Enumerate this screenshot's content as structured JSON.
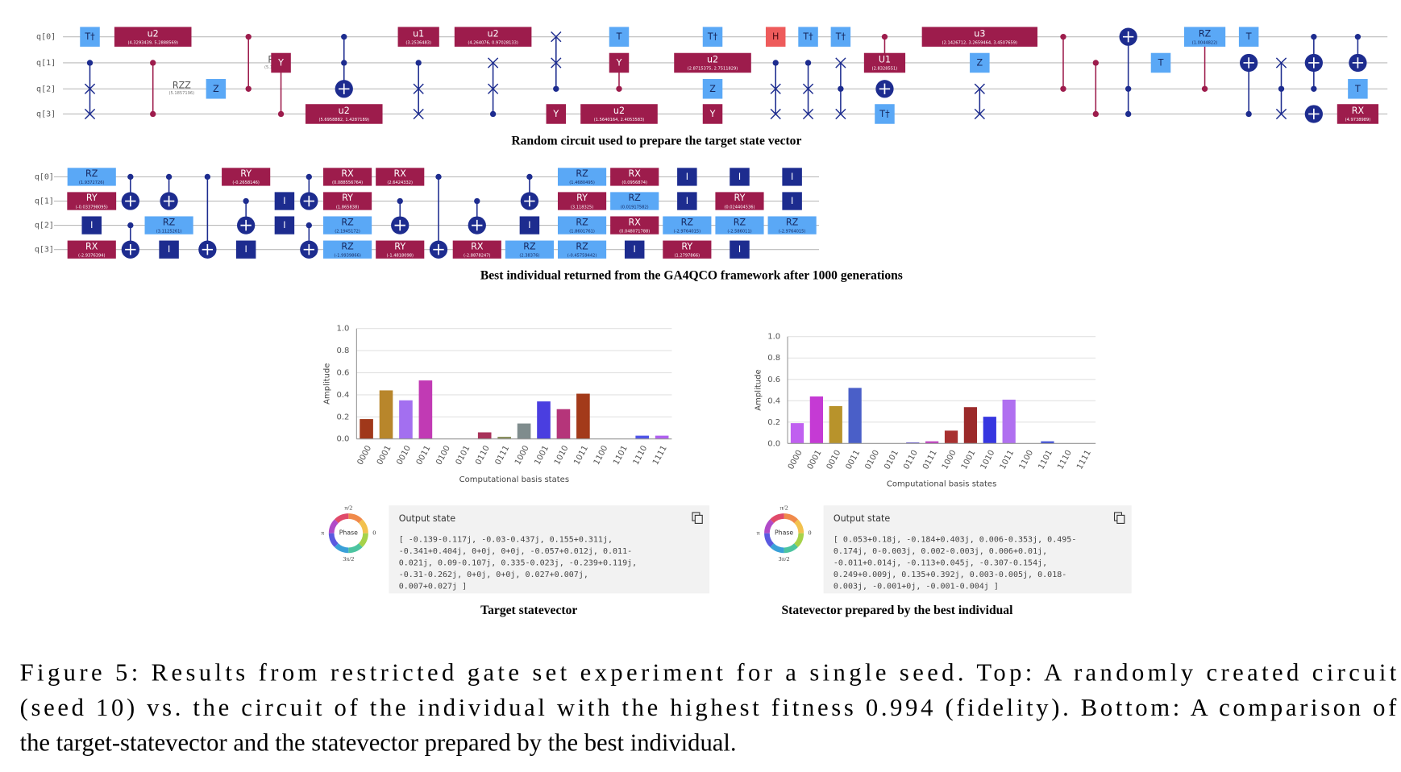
{
  "gate_colors": {
    "T†": {
      "fill": "#5aa8f6",
      "text": "#16275e"
    },
    "T": {
      "fill": "#5aa8f6",
      "text": "#16275e"
    },
    "Z": {
      "fill": "#5aa8f6",
      "text": "#16275e"
    },
    "RZ": {
      "fill": "#5aa8f6",
      "text": "#16275e"
    },
    "H": {
      "fill": "#ee5b5b",
      "text": "#4a0810"
    },
    "I": {
      "fill": "#1d2c8f",
      "text": "#ffffff"
    },
    "u1": {
      "fill": "#9d1c4c",
      "text": "#ffffff"
    },
    "u2": {
      "fill": "#9d1c4c",
      "text": "#ffffff"
    },
    "u3": {
      "fill": "#9d1c4c",
      "text": "#ffffff"
    },
    "U1": {
      "fill": "#9d1c4c",
      "text": "#ffffff"
    },
    "Y": {
      "fill": "#9d1c4c",
      "text": "#ffffff"
    },
    "RX": {
      "fill": "#9d1c4c",
      "text": "#ffffff"
    },
    "RY": {
      "fill": "#9d1c4c",
      "text": "#ffffff"
    }
  },
  "circuit_top": {
    "qubits": [
      "q[0]",
      "q[1]",
      "q[2]",
      "q[3]"
    ],
    "caption": "Random circuit used to prepare the target state vector",
    "columns": [
      [
        {
          "gate": "T†",
          "wire": 0
        },
        {
          "ctrl": [
            1
          ],
          "swap": [
            2,
            3
          ]
        }
      ],
      [
        {
          "gate": "u2",
          "params": "(4.3293439, 5.2888569)",
          "wire": 0
        },
        {
          "dots": [
            1,
            3
          ],
          "label": "RZZ",
          "params": "(5.1857196)",
          "color": "#9d1c4c"
        }
      ],
      [
        {
          "gate": "Z",
          "wire": 2
        }
      ],
      [
        {
          "dots": [
            0,
            2
          ],
          "label": "RZZ",
          "params": "(5.1966473)",
          "color": "#9d1c4c"
        }
      ],
      [
        {
          "gate": "Y",
          "wire": 1,
          "ctrl": [
            3
          ],
          "color": "#9d1c4c"
        }
      ],
      [
        {
          "ctrl": [
            0,
            1
          ],
          "target": 2
        },
        {
          "gate": "u2",
          "params": "(5.6958882, 1.4287189)",
          "wire": 3
        }
      ],
      [
        {
          "gate": "u1",
          "params": "(3.2536483)",
          "wire": 0
        },
        {
          "ctrl": [
            1
          ],
          "swap": [
            2,
            3
          ]
        }
      ],
      [
        {
          "gate": "u2",
          "params": "(4.264076, 0.97028133)",
          "wire": 0
        },
        {
          "ctrl": [
            3
          ],
          "swap": [
            1,
            2
          ]
        }
      ],
      [
        {
          "ctrl": [
            2
          ],
          "swap": [
            0,
            1
          ]
        },
        {
          "gate": "Y",
          "wire": 3
        }
      ],
      [
        {
          "gate": "T",
          "wire": 0
        },
        {
          "gate": "Y",
          "wire": 1,
          "ctrl": [
            2
          ],
          "color": "#9d1c4c"
        },
        {
          "gate": "u2",
          "params": "(1.5640164, 2.4053583)",
          "wire": 3
        }
      ],
      [
        {
          "gate": "T†",
          "wire": 0
        },
        {
          "gate": "u2",
          "params": "(2.8715375, 2.7511829)",
          "wire": 1
        },
        {
          "gate": "Z",
          "wire": 2
        },
        {
          "gate": "Y",
          "wire": 3
        }
      ],
      [
        {
          "gate": "H",
          "wire": 0
        },
        {
          "ctrl": [
            1
          ],
          "swap": [
            2,
            3
          ]
        }
      ],
      [
        {
          "gate": "T†",
          "wire": 0
        },
        {
          "ctrl": [
            1
          ],
          "swap": [
            2,
            3
          ]
        }
      ],
      [
        {
          "gate": "T†",
          "wire": 0
        },
        {
          "ctrl": [
            2
          ],
          "swap": [
            1,
            3
          ]
        }
      ],
      [
        {
          "gate": "U1",
          "params": "(2.8328551)",
          "wire": 1,
          "ctrl": [
            0
          ],
          "color": "#9d1c4c"
        },
        {
          "target": 2
        },
        {
          "gate": "T†",
          "wire": 3
        }
      ],
      [
        {
          "gate": "u3",
          "params": "(2.1426712, 3.2659464, 3.4507659)",
          "wire": 0
        },
        {
          "gate": "Z",
          "wire": 1
        },
        {
          "swap": [
            2,
            3
          ]
        }
      ],
      [
        {
          "dots": [
            0,
            2
          ],
          "color": "#9d1c4c"
        }
      ],
      [
        {
          "dots": [
            1,
            3
          ],
          "color": "#9d1c4c"
        }
      ],
      [
        {
          "ctrl": [
            2,
            3
          ],
          "target": 0
        }
      ],
      [
        {
          "gate": "T",
          "wire": 1
        }
      ],
      [
        {
          "gate": "RZ",
          "params": "(1.0044822)",
          "wire": 0,
          "ctrl": [
            2
          ],
          "color": "#9d1c4c"
        }
      ],
      [
        {
          "gate": "T",
          "wire": 0
        },
        {
          "ctrl": [
            3
          ],
          "target": 1
        }
      ],
      [
        {
          "ctrl": [
            2
          ],
          "swap": [
            1,
            3
          ]
        }
      ],
      [
        {
          "ctrl": [
            0,
            2
          ],
          "target": 1
        },
        {
          "target": 3
        }
      ],
      [
        {
          "ctrl": [
            0
          ],
          "target": 1
        },
        {
          "gate": "T",
          "wire": 2
        },
        {
          "gate": "RX",
          "params": "(4.9738989)",
          "wire": 3
        }
      ]
    ]
  },
  "circuit_bottom": {
    "qubits": [
      "q[0]",
      "q[1]",
      "q[2]",
      "q[3]"
    ],
    "caption": "Best individual returned from the GA4QCO framework after 1000 generations",
    "columns": [
      [
        {
          "gate": "RZ",
          "params": "(1.9372726)",
          "wire": 0
        },
        {
          "gate": "RY",
          "params": "(-0.033798095)",
          "wire": 1
        },
        {
          "gate": "I",
          "wire": 2
        },
        {
          "gate": "RX",
          "params": "(-2.9376394)",
          "wire": 3
        }
      ],
      [
        {
          "ctrl": [
            0
          ],
          "target": 1
        },
        {
          "ctrl": [
            2
          ],
          "target": 3
        }
      ],
      [
        {
          "ctrl": [
            0
          ],
          "target": 1
        },
        {
          "gate": "RZ",
          "params": "(3.1125261)",
          "wire": 2
        },
        {
          "gate": "I",
          "wire": 3
        }
      ],
      [
        {
          "ctrl": [
            0
          ],
          "target": 3
        }
      ],
      [
        {
          "gate": "RY",
          "params": "(-0.2658146)",
          "wire": 0
        },
        {
          "ctrl": [
            1
          ],
          "target": 2
        },
        {
          "gate": "I",
          "wire": 3
        }
      ],
      [
        {
          "gate": "I",
          "wire": 1
        },
        {
          "gate": "I",
          "wire": 2
        }
      ],
      [
        {
          "ctrl": [
            0
          ],
          "target": 1
        },
        {
          "ctrl": [
            2
          ],
          "target": 3
        }
      ],
      [
        {
          "gate": "RX",
          "params": "(0.088556764)",
          "wire": 0
        },
        {
          "gate": "RY",
          "params": "(1.865838)",
          "wire": 1
        },
        {
          "gate": "RZ",
          "params": "(2.1945172)",
          "wire": 2
        },
        {
          "gate": "RZ",
          "params": "(-1.9939866)",
          "wire": 3
        }
      ],
      [
        {
          "gate": "RX",
          "params": "(2.6424332)",
          "wire": 0
        },
        {
          "ctrl": [
            1
          ],
          "target": 2
        },
        {
          "gate": "RY",
          "params": "(-1.4818098)",
          "wire": 3
        }
      ],
      [
        {
          "ctrl": [
            0
          ],
          "target": 3
        }
      ],
      [
        {
          "ctrl": [
            1
          ],
          "target": 2
        },
        {
          "gate": "RX",
          "params": "(-2.8878247)",
          "wire": 3
        }
      ],
      [
        {
          "ctrl": [
            0
          ],
          "target": 1
        },
        {
          "gate": "I",
          "wire": 2
        },
        {
          "gate": "RZ",
          "params": "(2.38376)",
          "wire": 3
        }
      ],
      [
        {
          "gate": "RZ",
          "params": "(1.4680495)",
          "wire": 0
        },
        {
          "gate": "RY",
          "params": "(3.118325)",
          "wire": 1
        },
        {
          "gate": "RZ",
          "params": "(1.8601761)",
          "wire": 2
        },
        {
          "gate": "RZ",
          "params": "(-0.45759442)",
          "wire": 3
        }
      ],
      [
        {
          "gate": "RX",
          "params": "(0.0956874)",
          "wire": 0
        },
        {
          "gate": "RZ",
          "params": "(0.01917582)",
          "wire": 1
        },
        {
          "gate": "RX",
          "params": "(0.048071788)",
          "wire": 2
        },
        {
          "gate": "I",
          "wire": 3
        }
      ],
      [
        {
          "gate": "I",
          "wire": 0
        },
        {
          "gate": "I",
          "wire": 1
        },
        {
          "gate": "RZ",
          "params": "(-2.9764015)",
          "wire": 2
        },
        {
          "gate": "RY",
          "params": "(1.2797866)",
          "wire": 3
        }
      ],
      [
        {
          "gate": "I",
          "wire": 0
        },
        {
          "gate": "RY",
          "params": "(0.024404536)",
          "wire": 1
        },
        {
          "gate": "RZ",
          "params": "(-2.586011)",
          "wire": 2
        },
        {
          "gate": "I",
          "wire": 3
        }
      ],
      [
        {
          "gate": "I",
          "wire": 0
        },
        {
          "gate": "I",
          "wire": 1
        },
        {
          "gate": "RZ",
          "params": "(-2.9764015)",
          "wire": 2
        }
      ]
    ]
  },
  "chart_data": [
    {
      "type": "bar",
      "x_label": "Computational basis states",
      "y_label": "Amplitude",
      "caption": "Target statevector",
      "categories": [
        "0000",
        "0001",
        "0010",
        "0011",
        "0100",
        "0101",
        "0110",
        "0111",
        "1000",
        "1001",
        "1010",
        "1011",
        "1100",
        "1101",
        "1110",
        "1111"
      ],
      "values": [
        0.18,
        0.44,
        0.35,
        0.53,
        0,
        0,
        0.06,
        0.02,
        0.14,
        0.34,
        0.27,
        0.41,
        0,
        0,
        0.03,
        0.03
      ],
      "colors": [
        "#a0381a",
        "#b8862b",
        "#a36ff0",
        "#c13ab4",
        "#999999",
        "#999999",
        "#a8325a",
        "#8a9060",
        "#7f8c8d",
        "#4a3ee0",
        "#b5357a",
        "#a33a1a",
        "#999999",
        "#999999",
        "#5055e8",
        "#b060f0"
      ],
      "ylim": [
        0,
        1
      ],
      "yticks": [
        {
          "value": 0,
          "label": "0.0"
        },
        0.2,
        0.4,
        0.6,
        0.8,
        {
          "value": 1,
          "label": "1.0"
        }
      ],
      "grid": true
    },
    {
      "type": "bar",
      "x_label": "Computational basis states",
      "y_label": "Amplitude",
      "caption": "Statevector prepared by the best individual",
      "categories": [
        "0000",
        "0001",
        "0010",
        "0011",
        "0100",
        "0101",
        "0110",
        "0111",
        "1000",
        "1001",
        "1010",
        "1011",
        "1100",
        "1101",
        "1110",
        "1111"
      ],
      "values": [
        0.19,
        0.44,
        0.35,
        0.52,
        0,
        0,
        0.01,
        0.02,
        0.12,
        0.34,
        0.25,
        0.41,
        0,
        0.02,
        0,
        0
      ],
      "colors": [
        "#c060f0",
        "#c53ad4",
        "#b8932b",
        "#4a5fc8",
        "#999999",
        "#999999",
        "#6a5ad0",
        "#c040c0",
        "#a83030",
        "#9b2a2a",
        "#3636e0",
        "#b070f0",
        "#999999",
        "#4050d8",
        "#999999",
        "#999999"
      ],
      "ylim": [
        0,
        1
      ],
      "yticks": [
        {
          "value": 0,
          "label": "0.0"
        },
        0.2,
        0.4,
        0.6,
        0.8,
        {
          "value": 1,
          "label": "1.0"
        }
      ],
      "grid": true
    }
  ],
  "output_states": [
    {
      "title": "Output state",
      "phase": "Phase",
      "phase_labels": [
        "π/2",
        "0",
        "3π/2",
        "π"
      ],
      "lines": [
        "[ -0.139-0.117j, -0.03-0.437j, 0.155+0.311j,",
        "-0.341+0.404j, 0+0j, 0+0j, -0.057+0.012j, 0.011-",
        "0.021j, 0.09-0.107j, 0.335-0.023j, -0.239+0.119j,",
        "-0.31-0.262j, 0+0j, 0+0j, 0.027+0.007j,",
        "0.007+0.027j ]"
      ]
    },
    {
      "title": "Output state",
      "phase": "Phase",
      "phase_labels": [
        "π/2",
        "0",
        "3π/2",
        "π"
      ],
      "lines": [
        "[ 0.053+0.18j, -0.184+0.403j, 0.006-0.353j, 0.495-",
        "0.174j, 0-0.003j, 0.002-0.003j, 0.006+0.01j,",
        "-0.011+0.014j, -0.113+0.045j, -0.307-0.154j,",
        "0.249+0.009j, 0.135+0.392j, 0.003-0.005j, 0.018-",
        "0.003j, -0.001+0j, -0.001-0.004j ]"
      ]
    }
  ],
  "figure_caption": [
    "Figure 5: Results from restricted gate set experiment for a single seed. Top: A randomly created circuit",
    "(seed 10) vs. the circuit of the individual with the highest fitness 0.994 (fidelity). Bottom: A comparison of",
    "the target-statevector and the statevector prepared by the best individual."
  ]
}
